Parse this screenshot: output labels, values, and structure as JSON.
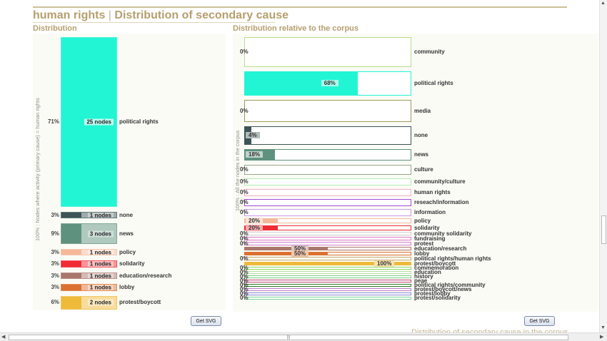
{
  "title": {
    "left": "human rights",
    "separator": "|",
    "right": "Distribution of secondary cause"
  },
  "left_section": {
    "title": "Distribution",
    "axis_label": "100% : Nodes where activity (primary cause) = human rights",
    "button": "Get SVG"
  },
  "right_section": {
    "title": "Distribution relative to the corpus",
    "axis_label": "100% : All the nodes in the corpus",
    "button": "Get SVG",
    "footer": "Distribution of secondary cause in the corpus"
  },
  "chart_data": [
    {
      "type": "bar",
      "title": "Distribution",
      "ylabel": "100% : Nodes where activity (primary cause) = human rights",
      "categories": [
        "political rights",
        "none",
        "news",
        "policy",
        "solidarity",
        "education/research",
        "lobby",
        "protest/boycott"
      ],
      "percent": [
        "71%",
        "3%",
        "9%",
        "3%",
        "3%",
        "3%",
        "3%",
        "6%"
      ],
      "values": [
        25,
        1,
        3,
        1,
        1,
        1,
        1,
        2
      ],
      "value_labels": [
        "25 nodes",
        "1 nodes",
        "3 nodes",
        "1 nodes",
        "1 nodes",
        "1 nodes",
        "1 nodes",
        "2 nodes"
      ],
      "colors": [
        "#22f5d4",
        "#3d5556",
        "#5e927f",
        "#f5b99a",
        "#f02c35",
        "#a9776c",
        "#dc7030",
        "#efb93a"
      ]
    },
    {
      "type": "bar",
      "title": "Distribution relative to the corpus",
      "ylabel": "100% : All the nodes in the corpus",
      "categories": [
        "community",
        "political rights",
        "media",
        "none",
        "news",
        "culture",
        "community/culture",
        "human rights",
        "reseach/information",
        "information",
        "policy",
        "solidarity",
        "community solidarity",
        "fundraising",
        "protest",
        "education/research",
        "lobby",
        "political rights/human rights",
        "protest/boycott",
        "commemoration",
        "education",
        "history",
        "peae",
        "political rights/community",
        "protest/boycott/news",
        "protest/lobby",
        "protest/solidarity"
      ],
      "values": [
        0,
        68,
        0,
        4,
        18,
        0,
        0,
        0,
        0,
        0,
        20,
        20,
        0,
        0,
        0,
        50,
        50,
        0,
        100,
        0,
        0,
        0,
        0,
        0,
        0,
        0,
        0
      ],
      "value_labels": [
        "0%",
        "68%",
        "0%",
        "4%",
        "18%",
        "0%",
        "0%",
        "0%",
        "0%",
        "0%",
        "20%",
        "20%",
        "0%",
        "0%",
        "0%",
        "50%",
        "50%",
        "0%",
        "100%",
        "0%",
        "0%",
        "0%",
        "0%",
        "0%",
        "0%",
        "0%",
        "0%"
      ],
      "colors": [
        "#b7dd86",
        "#22f5d4",
        "#9f9a58",
        "#3d5556",
        "#5e927f",
        "#97a58a",
        "#b4ecb4",
        "#f0b0c8",
        "#a54bd8",
        "#c79be8",
        "#f5b99a",
        "#f02c35",
        "#cfcfcf",
        "#e07acb",
        "#d37fd6",
        "#a9776c",
        "#dc7030",
        "#c2aa6b",
        "#efb93a",
        "#8bd660",
        "#b2e0a4",
        "#77cf83",
        "#c2477a",
        "#2e7c2b",
        "#c17acb",
        "#8a8ad6",
        "#7bd39c"
      ],
      "xlim": [
        0,
        100
      ]
    }
  ]
}
